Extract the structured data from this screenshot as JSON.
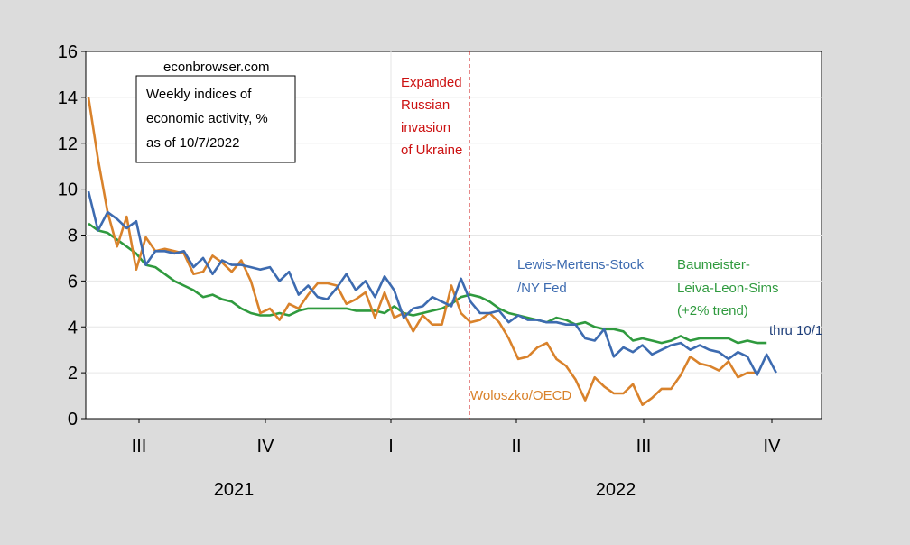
{
  "chart_data": {
    "type": "line",
    "y_ticks": [
      "0",
      "2",
      "4",
      "6",
      "8",
      "10",
      "12",
      "14",
      "16"
    ],
    "ylim": [
      0,
      16
    ],
    "quarter_labels": [
      "III",
      "IV",
      "I",
      "II",
      "III",
      "IV"
    ],
    "year_labels": [
      "2021",
      "2022"
    ],
    "source_label": "econbrowser.com",
    "title_lines": [
      "Weekly indices of",
      "economic activity, %",
      "as of 10/7/2022"
    ],
    "event_line": {
      "date_index": 43,
      "label_lines": [
        "Expanded",
        "Russian",
        "invasion",
        "of Ukraine"
      ]
    },
    "end_label": "thru 10/1",
    "colors": {
      "wei": "#3d6bb0",
      "oecd": "#d9822b",
      "bll": "#2f9a3e",
      "event": "#cc1111"
    },
    "series": [
      {
        "key": "wei",
        "name_lines": [
          "Lewis-Mertens-Stock",
          "/NY Fed"
        ],
        "values": [
          9.9,
          8.2,
          9.0,
          8.7,
          8.3,
          8.6,
          6.7,
          7.3,
          7.3,
          7.2,
          7.3,
          6.6,
          7.0,
          6.3,
          6.9,
          6.7,
          6.7,
          6.6,
          6.5,
          6.6,
          6.0,
          6.4,
          5.4,
          5.8,
          5.3,
          5.2,
          5.7,
          6.3,
          5.6,
          6.0,
          5.3,
          6.2,
          5.6,
          4.4,
          4.8,
          4.9,
          5.3,
          5.1,
          4.9,
          6.1,
          5.1,
          4.6,
          4.6,
          4.7,
          4.2,
          4.5,
          4.3,
          4.3,
          4.2,
          4.2,
          4.1,
          4.1,
          3.5,
          3.4,
          3.9,
          2.7,
          3.1,
          2.9,
          3.2,
          2.8,
          3.0,
          3.2,
          3.3,
          3.0,
          3.2,
          3.0,
          2.9,
          2.6,
          2.9,
          2.7,
          1.9,
          2.8,
          2.0
        ]
      },
      {
        "key": "oecd",
        "name_lines": [
          "Woloszko/OECD"
        ],
        "values": [
          14.0,
          11.3,
          9.0,
          7.5,
          8.8,
          6.5,
          7.9,
          7.3,
          7.4,
          7.3,
          7.2,
          6.3,
          6.4,
          7.1,
          6.8,
          6.4,
          6.9,
          6.0,
          4.6,
          4.8,
          4.3,
          5.0,
          4.8,
          5.4,
          5.9,
          5.9,
          5.8,
          5.0,
          5.2,
          5.5,
          4.4,
          5.5,
          4.4,
          4.6,
          3.8,
          4.5,
          4.1,
          4.1,
          5.8,
          4.6,
          4.2,
          4.3,
          4.6,
          4.2,
          3.5,
          2.6,
          2.7,
          3.1,
          3.3,
          2.6,
          2.3,
          1.7,
          0.8,
          1.8,
          1.4,
          1.1,
          1.1,
          1.5,
          0.6,
          0.9,
          1.3,
          1.3,
          1.9,
          2.7,
          2.4,
          2.3,
          2.1,
          2.5,
          1.8,
          2.0,
          2.0
        ]
      },
      {
        "key": "bll",
        "name_lines": [
          "Baumeister-",
          "Leiva-Leon-Sims",
          "(+2% trend)"
        ],
        "values": [
          8.5,
          8.2,
          8.1,
          7.8,
          7.5,
          7.2,
          6.7,
          6.6,
          6.3,
          6.0,
          5.8,
          5.6,
          5.3,
          5.4,
          5.2,
          5.1,
          4.8,
          4.6,
          4.5,
          4.5,
          4.6,
          4.5,
          4.7,
          4.8,
          4.8,
          4.8,
          4.8,
          4.8,
          4.7,
          4.7,
          4.7,
          4.6,
          4.9,
          4.6,
          4.5,
          4.6,
          4.7,
          4.8,
          5.0,
          5.3,
          5.4,
          5.3,
          5.1,
          4.8,
          4.6,
          4.5,
          4.4,
          4.3,
          4.2,
          4.4,
          4.3,
          4.1,
          4.2,
          4.0,
          3.9,
          3.9,
          3.8,
          3.4,
          3.5,
          3.4,
          3.3,
          3.4,
          3.6,
          3.4,
          3.5,
          3.5,
          3.5,
          3.5,
          3.3,
          3.4,
          3.3,
          3.3
        ]
      }
    ]
  }
}
